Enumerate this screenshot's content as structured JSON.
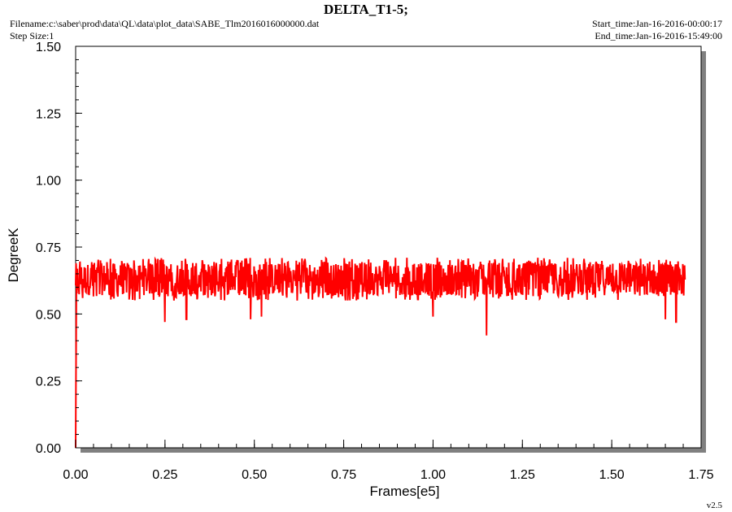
{
  "header": {
    "title": "DELTA_T1-5;",
    "filename": "Filename:c:\\saber\\prod\\data\\QL\\data\\plot_data\\SABE_Tlm2016016000000.dat",
    "step_size": "Step Size:1",
    "start_time": "Start_time:Jan-16-2016-00:00:17",
    "end_time": "End_time:Jan-16-2016-15:49:00"
  },
  "footer": {
    "version": "v2.5"
  },
  "colors": {
    "series": "#ff0000",
    "axis": "#000000",
    "shadow": "#808080"
  },
  "chart_data": {
    "type": "line",
    "xlabel": "Frames[e5]",
    "ylabel": "DegreeK",
    "xlim": [
      0.0,
      1.75
    ],
    "ylim": [
      0.0,
      1.5
    ],
    "xticks": [
      "0.00",
      "0.25",
      "0.50",
      "0.75",
      "1.00",
      "1.25",
      "1.50",
      "1.75"
    ],
    "yticks": [
      "0.00",
      "0.25",
      "0.50",
      "0.75",
      "1.00",
      "1.25",
      "1.50"
    ],
    "grid": false,
    "series": [
      {
        "x_range": [
          0.0,
          1.705
        ],
        "typical_low": 0.55,
        "typical_high": 0.71,
        "mean": 0.62,
        "min": 0.42,
        "max": 0.72,
        "notable_dips": [
          {
            "x": 0.25,
            "y": 0.47
          },
          {
            "x": 0.31,
            "y": 0.48
          },
          {
            "x": 0.49,
            "y": 0.48
          },
          {
            "x": 0.52,
            "y": 0.49
          },
          {
            "x": 1.0,
            "y": 0.49
          },
          {
            "x": 1.15,
            "y": 0.42
          },
          {
            "x": 1.65,
            "y": 0.48
          },
          {
            "x": 1.68,
            "y": 0.47
          }
        ],
        "initial_rise": {
          "x": 0.0,
          "y_from": 0.0,
          "y_to": 0.65
        }
      }
    ]
  }
}
